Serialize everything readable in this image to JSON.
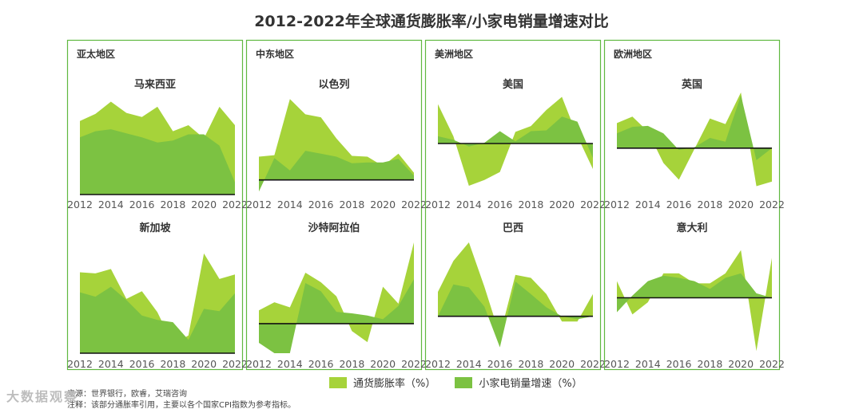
{
  "title": "2012-2022年全球通货膨胀率/小家电销量增速对比",
  "colors": {
    "frame": "#5fb83f",
    "inflation": "#a6d33a",
    "sales": "#7cc242",
    "baseline": "#111111"
  },
  "legend": {
    "inflation": "通货膨胀率（%）",
    "sales": "小家电销量增速（%）"
  },
  "source": {
    "line1": "来源：世界银行，欧睿，艾瑞咨询",
    "line2": "注释：该部分通胀率引用，主要以各个国家CPI指数为参考指标。"
  },
  "watermark": "大数据观察",
  "chart_data": {
    "type": "area",
    "x": [
      2012,
      2013,
      2014,
      2015,
      2016,
      2017,
      2018,
      2019,
      2020,
      2021,
      2022
    ],
    "tick_labels": [
      "2012",
      "2014",
      "2016",
      "2018",
      "2020",
      "2022"
    ],
    "series_names": [
      "通货膨胀率（%）",
      "小家电销量增速（%）"
    ],
    "regions": [
      {
        "name": "亚太地区",
        "panels": [
          {
            "country": "马来西亚",
            "ylim": [
              0,
              10
            ],
            "baseline": 0,
            "inflation": [
              7.2,
              7.9,
              9.1,
              8.0,
              7.6,
              8.6,
              6.2,
              6.8,
              5.5,
              8.6,
              6.8
            ],
            "sales": [
              5.6,
              6.2,
              6.4,
              6.0,
              5.6,
              5.1,
              5.3,
              5.9,
              5.9,
              4.8,
              1.2
            ]
          },
          {
            "country": "新加坡",
            "ylim": [
              0,
              10
            ],
            "baseline": 0,
            "inflation": [
              7.3,
              7.2,
              7.6,
              4.9,
              5.6,
              3.7,
              0.8,
              1.6,
              9.0,
              6.7,
              7.1
            ],
            "sales": [
              5.5,
              5.1,
              6.0,
              4.8,
              3.4,
              3.0,
              2.8,
              1.2,
              4.0,
              3.8,
              5.4
            ]
          }
        ]
      },
      {
        "name": "中东地区",
        "panels": [
          {
            "country": "以色列",
            "ylim": [
              -2,
              12
            ],
            "baseline": 0,
            "inflation": [
              3.2,
              3.4,
              11.1,
              9.0,
              8.6,
              5.7,
              3.3,
              3.2,
              1.9,
              3.6,
              1.0
            ],
            "sales": [
              -1.6,
              3.0,
              1.3,
              4.0,
              3.6,
              3.2,
              2.3,
              2.4,
              2.4,
              2.9,
              0.6
            ]
          },
          {
            "country": "沙特阿拉伯",
            "ylim": [
              -4,
              11
            ],
            "baseline": 0,
            "inflation": [
              1.8,
              2.9,
              2.2,
              6.9,
              5.6,
              3.7,
              -1.0,
              -2.5,
              5.0,
              2.7,
              11.0
            ],
            "sales": [
              -2.6,
              -4.0,
              -4.0,
              5.5,
              4.4,
              1.6,
              1.4,
              1.1,
              0.6,
              2.4,
              6.0
            ]
          }
        ]
      },
      {
        "name": "美洲地区",
        "panels": [
          {
            "country": "美国",
            "ylim": [
              -7,
              7
            ],
            "baseline": 0,
            "inflation": [
              5.4,
              1.0,
              -5.8,
              -5.0,
              -3.9,
              1.6,
              2.4,
              4.6,
              6.4,
              1.0,
              -3.5
            ],
            "sales": [
              1.0,
              0.5,
              -0.4,
              0.1,
              1.7,
              0.3,
              1.7,
              1.8,
              3.7,
              3.0,
              -2.0
            ]
          },
          {
            "country": "巴西",
            "ylim": [
              -5,
              10
            ],
            "baseline": 0,
            "inflation": [
              3.3,
              7.5,
              10.0,
              4.0,
              -2.6,
              5.6,
              5.2,
              3.0,
              -0.7,
              -0.7,
              3.0
            ],
            "sales": [
              0.0,
              4.3,
              3.9,
              1.3,
              -4.2,
              4.7,
              3.0,
              1.2,
              0.0,
              -0.4,
              0.0
            ]
          }
        ]
      },
      {
        "name": "欧洲地区",
        "panels": [
          {
            "country": "英国",
            "ylim": [
              -5,
              6
            ],
            "baseline": 0,
            "inflation": [
              2.7,
              3.4,
              1.8,
              -1.6,
              -3.4,
              -0.1,
              3.2,
              2.6,
              6.0,
              -4.1,
              -3.6
            ],
            "sales": [
              1.6,
              2.3,
              2.4,
              1.6,
              -0.2,
              0.1,
              1.1,
              0.7,
              5.7,
              -1.3,
              0.0
            ]
          },
          {
            "country": "意大利",
            "ylim": [
              -5,
              5
            ],
            "baseline": 0,
            "inflation": [
              1.5,
              -1.5,
              -0.4,
              2.2,
              2.2,
              1.3,
              1.3,
              2.2,
              4.3,
              -4.8,
              3.6
            ],
            "sales": [
              -1.3,
              0.2,
              1.5,
              2.0,
              1.8,
              1.5,
              0.8,
              1.8,
              2.2,
              0.4,
              0.0
            ]
          }
        ]
      }
    ]
  }
}
